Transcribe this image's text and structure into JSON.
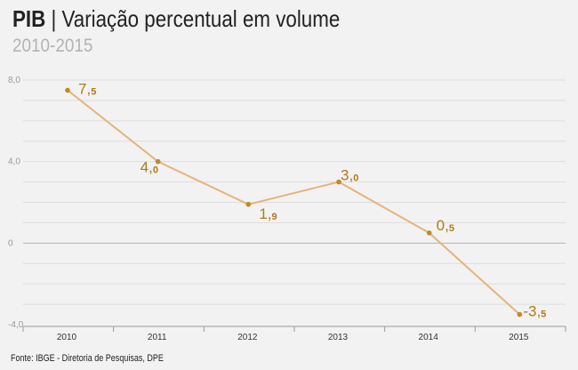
{
  "header": {
    "title_bold": "PIB",
    "title_rest": " | Variação percentual em volume",
    "subtitle": "2010-2015"
  },
  "footer": {
    "source": "Fonte: IBGE - Diretoria de Pesquisas, DPE"
  },
  "colors": {
    "line": "#e3b57c",
    "point": "#c08a2a",
    "label": "#b07a18",
    "grid": "#dddddd",
    "zero_line": "#b5b5b5",
    "axis": "#9a9a9a"
  },
  "chart_data": {
    "type": "line",
    "title": "PIB | Variação percentual em volume",
    "subtitle": "2010-2015",
    "categories": [
      "2010",
      "2011",
      "2012",
      "2013",
      "2014",
      "2015"
    ],
    "series": [
      {
        "name": "PIB",
        "values": [
          7.5,
          4.0,
          1.9,
          3.0,
          0.5,
          -3.5
        ]
      }
    ],
    "data_labels": [
      {
        "int": "7,",
        "dec": "5"
      },
      {
        "int": "4,",
        "dec": "0"
      },
      {
        "int": "1,",
        "dec": "9"
      },
      {
        "int": "3,",
        "dec": "0"
      },
      {
        "int": "0,",
        "dec": "5"
      },
      {
        "int": "-3,",
        "dec": "5"
      }
    ],
    "yticks": [
      {
        "value": 8,
        "label": "8,0"
      },
      {
        "value": 4,
        "label": "4,0"
      },
      {
        "value": 0,
        "label": "0"
      },
      {
        "value": -4,
        "label": "-4,0"
      }
    ],
    "ylim": [
      -4,
      8
    ],
    "xlabel": "",
    "ylabel": "",
    "grid": true,
    "source": "Fonte: IBGE - Diretoria de Pesquisas, DPE"
  }
}
